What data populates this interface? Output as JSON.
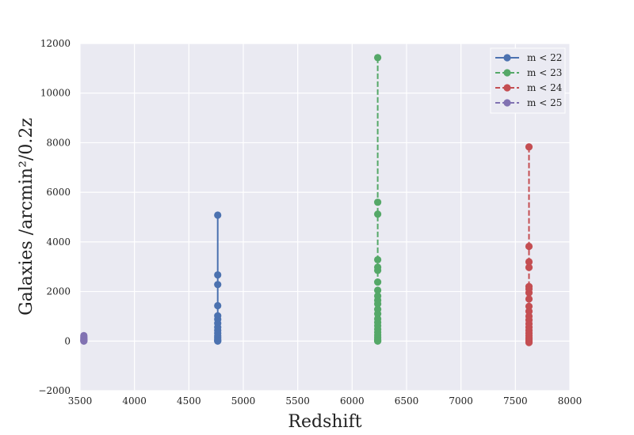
{
  "chart_data": {
    "type": "line",
    "xlabel": "Redshift",
    "ylabel": "Galaxies /arcmin²/0.2z",
    "xlim": [
      3500,
      8000
    ],
    "ylim": [
      -2000,
      12000
    ],
    "x_ticks": [
      3500,
      4000,
      4500,
      5000,
      5500,
      6000,
      6500,
      7000,
      7500,
      8000
    ],
    "y_ticks": [
      -2000,
      0,
      2000,
      4000,
      6000,
      8000,
      10000,
      12000
    ],
    "x_tick_labels": [
      "3500",
      "4000",
      "4500",
      "5000",
      "5500",
      "6000",
      "6500",
      "7000",
      "7500",
      "8000"
    ],
    "y_tick_labels": [
      "−2000",
      "0",
      "2000",
      "4000",
      "6000",
      "8000",
      "10000",
      "12000"
    ],
    "grid": true,
    "legend_position": "top-right",
    "series": [
      {
        "name": "m < 22",
        "color": "#4c72b0",
        "dash": "solid",
        "x": 4765,
        "y": [
          5080,
          2670,
          2280,
          1430,
          1020,
          880,
          720,
          560,
          430,
          320,
          220,
          150,
          90,
          40,
          10,
          0
        ]
      },
      {
        "name": "m < 23",
        "color": "#55a868",
        "dash": "dashed",
        "x": 6235,
        "y": [
          11430,
          5600,
          5120,
          3280,
          2980,
          2850,
          2380,
          2050,
          1820,
          1650,
          1500,
          1280,
          1100,
          900,
          760,
          620,
          480,
          360,
          250,
          160,
          90,
          40,
          10,
          0
        ]
      },
      {
        "name": "m < 24",
        "color": "#c44e52",
        "dash": "dashed",
        "x": 7625,
        "y": [
          7830,
          3820,
          3200,
          2970,
          2200,
          2100,
          1950,
          1700,
          1400,
          1200,
          1000,
          850,
          700,
          560,
          430,
          320,
          220,
          130,
          60,
          0,
          -60
        ]
      },
      {
        "name": "m < 25",
        "color": "#8172b2",
        "dash": "dashed",
        "x": 3535,
        "y": [
          220,
          170,
          130,
          90,
          60,
          30,
          10,
          0
        ]
      }
    ]
  }
}
